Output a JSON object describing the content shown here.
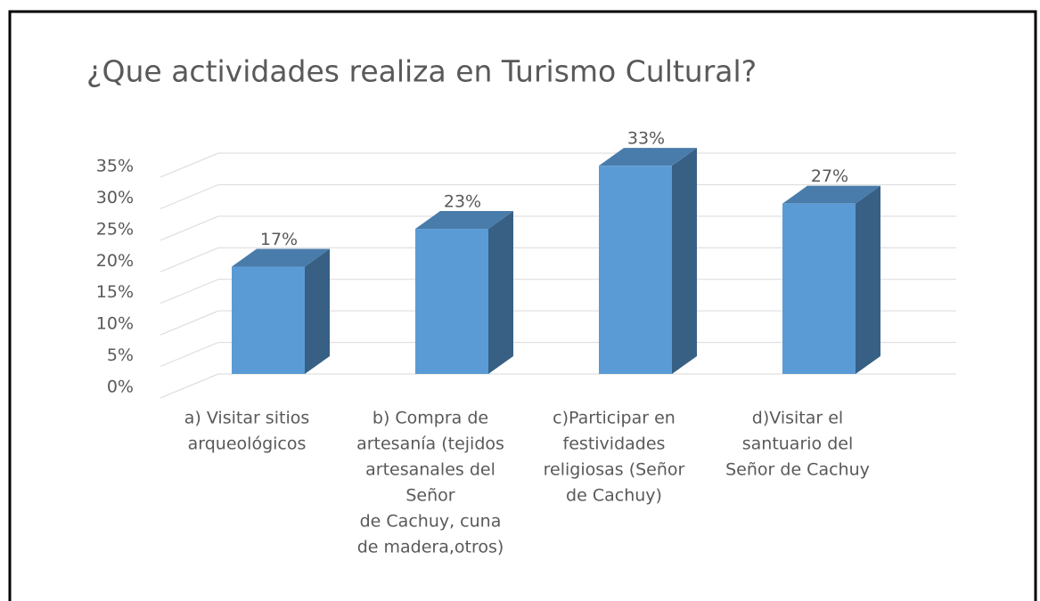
{
  "chart_data": {
    "type": "bar3d",
    "title": "¿Que actividades realiza en Turismo Cultural?",
    "categories": [
      [
        "a) Visitar sitios",
        "arqueológicos"
      ],
      [
        "b) Compra de",
        "artesanía (tejidos",
        "artesanales del",
        "Señor",
        "de Cachuy, cuna",
        "de madera,otros)"
      ],
      [
        "c)Participar en",
        "festividades",
        "religiosas (Señor",
        "de Cachuy)"
      ],
      [
        "d)Visitar el",
        "santuario del",
        "Señor de Cachuy"
      ]
    ],
    "values": [
      17,
      23,
      33,
      27
    ],
    "value_labels": [
      "17%",
      "23%",
      "33%",
      "27%"
    ],
    "color": "#5b9bd5",
    "ylim": [
      0,
      35
    ],
    "yticks": [
      {
        "value": 0,
        "label": "0%"
      },
      {
        "value": 5,
        "label": "5%"
      },
      {
        "value": 10,
        "label": "10%"
      },
      {
        "value": 15,
        "label": "15%"
      },
      {
        "value": 20,
        "label": "20%"
      },
      {
        "value": 25,
        "label": "25%"
      },
      {
        "value": 30,
        "label": "30%"
      },
      {
        "value": 35,
        "label": "35%"
      }
    ],
    "grid": true
  }
}
